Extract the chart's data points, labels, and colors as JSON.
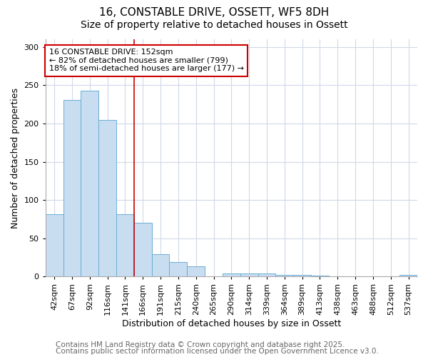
{
  "title1": "16, CONSTABLE DRIVE, OSSETT, WF5 8DH",
  "title2": "Size of property relative to detached houses in Ossett",
  "xlabel": "Distribution of detached houses by size in Ossett",
  "ylabel": "Number of detached properties",
  "categories": [
    "42sqm",
    "67sqm",
    "92sqm",
    "116sqm",
    "141sqm",
    "166sqm",
    "191sqm",
    "215sqm",
    "240sqm",
    "265sqm",
    "290sqm",
    "314sqm",
    "339sqm",
    "364sqm",
    "389sqm",
    "413sqm",
    "438sqm",
    "463sqm",
    "488sqm",
    "512sqm",
    "537sqm"
  ],
  "values": [
    81,
    231,
    243,
    205,
    81,
    70,
    29,
    19,
    13,
    0,
    4,
    4,
    4,
    2,
    2,
    1,
    0,
    0,
    0,
    0,
    2
  ],
  "bar_color": "#c8ddf0",
  "bar_edge_color": "#6aaed6",
  "annotation_box_text": "16 CONSTABLE DRIVE: 152sqm\n← 82% of detached houses are smaller (799)\n18% of semi-detached houses are larger (177) →",
  "annotation_box_color": "#ffffff",
  "annotation_box_edge_color": "#cc0000",
  "vline_color": "#cc0000",
  "vline_x": 4.5,
  "ylim": [
    0,
    310
  ],
  "yticks": [
    0,
    50,
    100,
    150,
    200,
    250,
    300
  ],
  "footer1": "Contains HM Land Registry data © Crown copyright and database right 2025.",
  "footer2": "Contains public sector information licensed under the Open Government Licence v3.0.",
  "background_color": "#ffffff",
  "plot_bg_color": "#ffffff",
  "grid_color": "#d0d8e8",
  "title_fontsize": 11,
  "subtitle_fontsize": 10,
  "axis_label_fontsize": 9,
  "tick_fontsize": 8,
  "annotation_fontsize": 8,
  "footer_fontsize": 7.5
}
